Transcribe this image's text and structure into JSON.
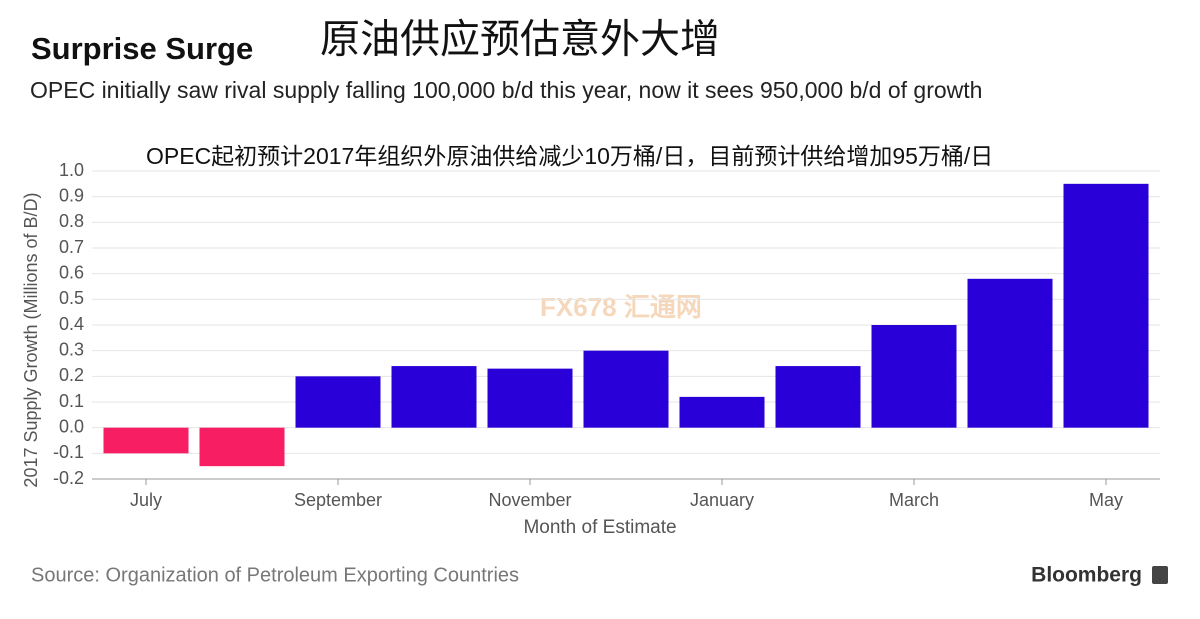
{
  "chart_data": {
    "type": "bar",
    "title": "Surprise Surge",
    "title_cn": "原油供应预估意外大增",
    "subtitle": "OPEC initially saw rival supply falling 100,000 b/d this year, now it sees 950,000 b/d of growth",
    "subtitle_cn": "OPEC起初预计2017年组织外原油供给减少10万桶/日，目前预计供给增加95万桶/日",
    "y_label": "2017 Supply Growth (Millions of B/D)",
    "x_label": "Month of Estimate",
    "source": "Source: Organization of Petroleum Exporting Countries",
    "brand": "Bloomberg",
    "watermark": "FX678 汇通网",
    "categories": [
      "July",
      null,
      "September",
      null,
      "November",
      null,
      "January",
      null,
      "March",
      null,
      "May"
    ],
    "values": [
      -0.1,
      -0.15,
      0.2,
      0.24,
      0.23,
      0.3,
      0.12,
      0.24,
      0.4,
      0.58,
      0.95
    ],
    "color": "#2a00d8",
    "color_negative": "#f81e64",
    "ylim": [
      -0.2,
      1.0
    ],
    "yticks": [
      -0.2,
      -0.1,
      {
        "value": 0,
        "label": "0.0"
      },
      0.1,
      0.2,
      0.3,
      0.4,
      0.5,
      0.6,
      0.7,
      0.8,
      0.9,
      {
        "value": 1,
        "label": "1.0"
      }
    ],
    "grid": true
  }
}
